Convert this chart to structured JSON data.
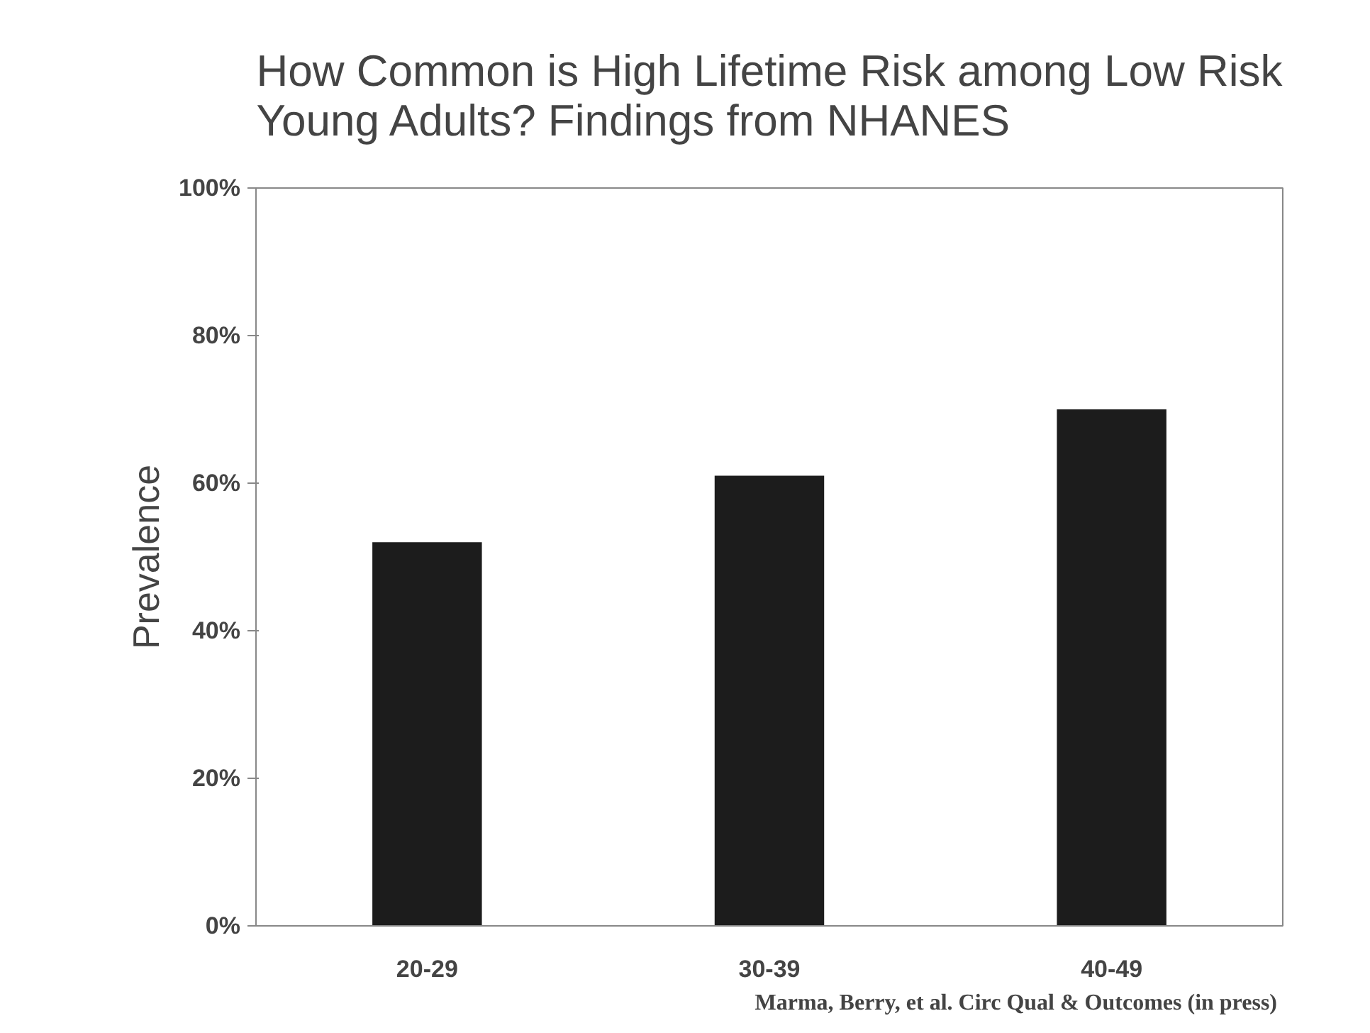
{
  "chart_data": {
    "type": "bar",
    "title": "How Common is High Lifetime Risk among Low Risk Young Adults? Findings from NHANES",
    "ylabel": "Prevalence",
    "categories": [
      "20-29",
      "30-39",
      "40-49"
    ],
    "values": [
      52,
      61,
      70
    ],
    "color": "#1c1c1c",
    "ylim": [
      0,
      100
    ],
    "yticks": [
      {
        "value": 0,
        "label": "0%"
      },
      {
        "value": 20,
        "label": "20%"
      },
      {
        "value": 40,
        "label": "40%"
      },
      {
        "value": 60,
        "label": "60%"
      },
      {
        "value": 80,
        "label": "80%"
      },
      {
        "value": 100,
        "label": "100%"
      }
    ],
    "grid": false,
    "annotations": [
      "Marma, Berry, et al.  Circ Qual & Outcomes (in press)"
    ]
  }
}
